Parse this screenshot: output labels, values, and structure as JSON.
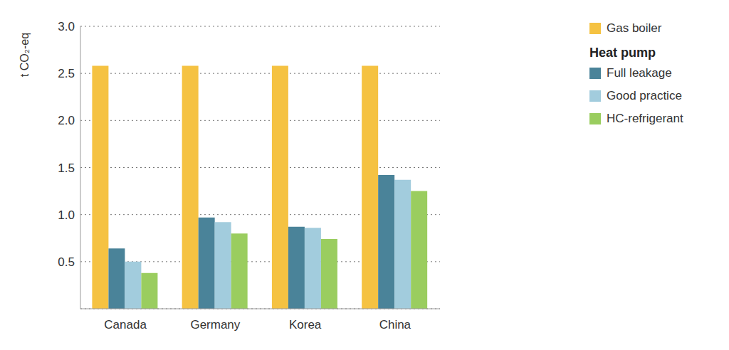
{
  "chart_data": {
    "type": "bar",
    "y_label": "t CO₂-eq",
    "categories": [
      "Canada",
      "Germany",
      "Korea",
      "China"
    ],
    "series": [
      {
        "name": "Gas boiler",
        "color": "#F5C242",
        "values": [
          2.58,
          2.58,
          2.58,
          2.58
        ]
      },
      {
        "name": "Full leakage",
        "group": "Heat pump",
        "color": "#4A8399",
        "values": [
          0.64,
          0.97,
          0.87,
          1.42
        ]
      },
      {
        "name": "Good practice",
        "group": "Heat pump",
        "color": "#A2CCDD",
        "values": [
          0.5,
          0.92,
          0.86,
          1.37
        ]
      },
      {
        "name": "HC-refrigerant",
        "group": "Heat pump",
        "color": "#9ACD5F",
        "values": [
          0.38,
          0.8,
          0.74,
          1.25
        ]
      }
    ],
    "ylim": [
      0,
      3
    ],
    "yticks": [
      0.5,
      {
        "value": 1,
        "label": "1.0"
      },
      1.5,
      {
        "value": 2,
        "label": "2.0"
      },
      2.5,
      {
        "value": 3,
        "label": "3.0"
      }
    ],
    "grid": true,
    "legend": "right"
  }
}
